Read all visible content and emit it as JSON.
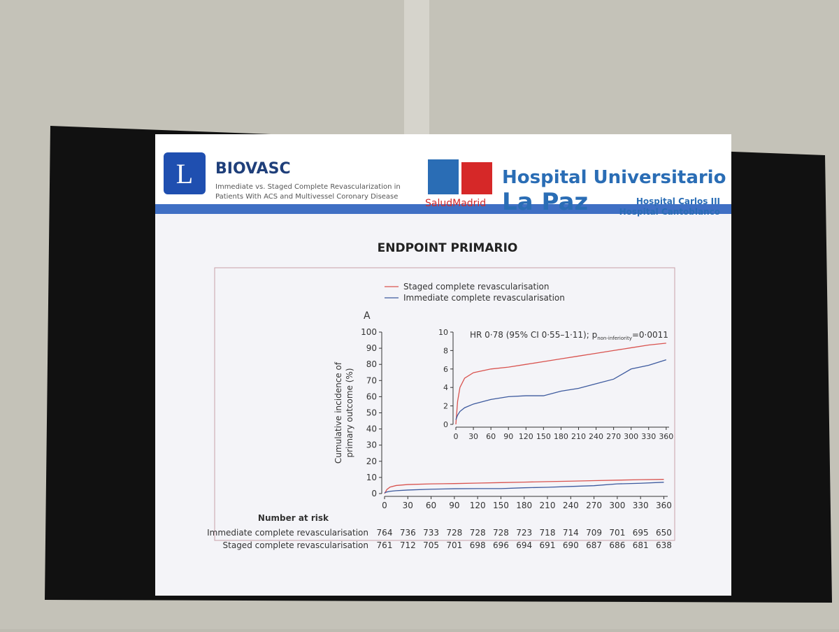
{
  "header": {
    "logo_letter": "L",
    "title": "BIOVASC",
    "subtitle_lines": [
      "Immediate vs. Staged Complete Revascularization in",
      "Patients With ACS and Multivessel Coronary Disease"
    ],
    "salud": "SaludMadrid",
    "hospital_line1": "Hospital Universitario",
    "hospital_line2": "La Paz",
    "hospitals": [
      "Hospital Carlos III",
      "Hospital Cantoblanco"
    ]
  },
  "slide_title": "ENDPOINT PRIMARIO",
  "chart_data": [
    {
      "type": "line",
      "panel_label": "A",
      "y_label": [
        "Cumulative incidence of",
        "primary outcome (%)"
      ],
      "x": [
        0,
        3,
        7,
        15,
        30,
        60,
        90,
        120,
        150,
        180,
        210,
        240,
        270,
        300,
        330,
        360
      ],
      "series": [
        {
          "name": "Staged complete revascularisation",
          "color": "#d9534f",
          "values": [
            0,
            2.5,
            4,
            5,
            5.6,
            6,
            6.2,
            6.5,
            6.8,
            7.1,
            7.4,
            7.7,
            8,
            8.3,
            8.6,
            8.8
          ]
        },
        {
          "name": "Immediate complete revascularisation",
          "color": "#3d5a9e",
          "values": [
            0.5,
            1,
            1.4,
            1.8,
            2.2,
            2.7,
            3,
            3.1,
            3.1,
            3.6,
            3.9,
            4.4,
            4.9,
            6,
            6.4,
            7
          ]
        }
      ],
      "xlim": [
        0,
        365
      ],
      "ylim": [
        0,
        100
      ],
      "xticks": [
        0,
        30,
        60,
        90,
        120,
        150,
        180,
        210,
        240,
        270,
        300,
        330,
        360
      ],
      "yticks": [
        0,
        10,
        20,
        30,
        40,
        50,
        60,
        70,
        80,
        90,
        100
      ]
    },
    {
      "type": "line",
      "annotation": [
        "HR 0·78 (95% CI 0·55–1·11); p",
        "non-inferiority",
        "=0·0011"
      ],
      "x": [
        0,
        3,
        7,
        15,
        30,
        60,
        90,
        120,
        150,
        180,
        210,
        240,
        270,
        300,
        330,
        360
      ],
      "series": [
        {
          "color": "#d9534f",
          "values": [
            0,
            2.5,
            4,
            5,
            5.6,
            6,
            6.2,
            6.5,
            6.8,
            7.1,
            7.4,
            7.7,
            8,
            8.3,
            8.6,
            8.8
          ]
        },
        {
          "color": "#3d5a9e",
          "values": [
            0.5,
            1,
            1.4,
            1.8,
            2.2,
            2.7,
            3,
            3.1,
            3.1,
            3.6,
            3.9,
            4.4,
            4.9,
            6,
            6.4,
            7
          ]
        }
      ],
      "xlim": [
        0,
        365
      ],
      "ylim": [
        0,
        10
      ],
      "xticks": [
        0,
        30,
        60,
        90,
        120,
        150,
        180,
        210,
        240,
        270,
        300,
        330,
        360
      ],
      "yticks": [
        0,
        2,
        4,
        6,
        8,
        10
      ]
    }
  ],
  "risk_table": {
    "title": "Number at risk",
    "rows": [
      {
        "name": "Immediate complete revascularisation",
        "values": [
          764,
          736,
          733,
          728,
          728,
          728,
          723,
          718,
          714,
          709,
          701,
          695,
          650
        ]
      },
      {
        "name": "Staged complete revascularisation",
        "values": [
          761,
          712,
          705,
          701,
          698,
          696,
          694,
          691,
          690,
          687,
          686,
          681,
          638
        ]
      }
    ]
  }
}
